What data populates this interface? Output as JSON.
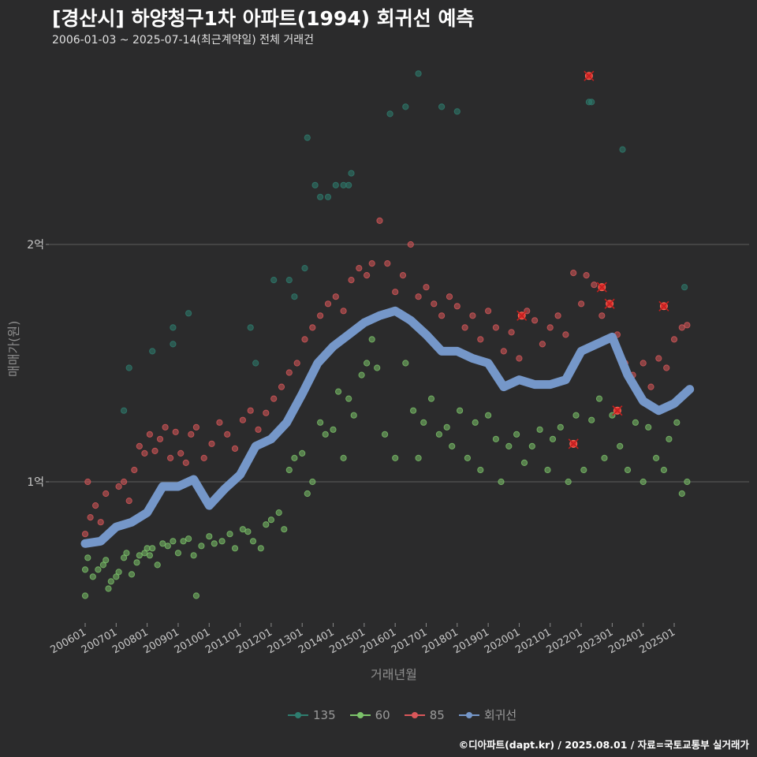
{
  "header": {
    "title": "[경산시] 하양청구1차 아파트(1994) 회귀선 예측",
    "subtitle": "2006-01-03 ~ 2025-07-14(최근계약일) 전체 거래건"
  },
  "footer": {
    "credit": "©디아파트(dapt.kr) / 2025.08.01 / 자료=국토교통부 실거래가"
  },
  "chart_data": {
    "type": "scatter",
    "title": "[경산시] 하양청구1차 아파트(1994) 회귀선 예측",
    "xlabel": "거래년월",
    "ylabel": "매매가(원)",
    "x_type": "date",
    "xlim": [
      "2006-01",
      "2025-12"
    ],
    "ylim": [
      5800,
      27500
    ],
    "y_ticks": [
      {
        "value": 10000,
        "label": "1억"
      },
      {
        "value": 20000,
        "label": "2억"
      }
    ],
    "x_ticks": [
      "200601",
      "200701",
      "200801",
      "200901",
      "201001",
      "201101",
      "201201",
      "201301",
      "201401",
      "201501",
      "201601",
      "201701",
      "201801",
      "201901",
      "202001",
      "202101",
      "202201",
      "202301",
      "202401",
      "202501"
    ],
    "grid": true,
    "legend_position": "bottom",
    "colors": {
      "135": "#2e7d6f",
      "60": "#7cc36a",
      "85": "#d9575a",
      "회귀선": "#7597c9"
    },
    "series": [
      {
        "name": "135",
        "type": "scatter",
        "points": [
          [
            "2007-04",
            13000
          ],
          [
            "2007-06",
            14800
          ],
          [
            "2008-03",
            15500
          ],
          [
            "2008-11",
            16500
          ],
          [
            "2008-11",
            15800
          ],
          [
            "2009-05",
            17100
          ],
          [
            "2011-05",
            16500
          ],
          [
            "2011-07",
            15000
          ],
          [
            "2012-02",
            18500
          ],
          [
            "2012-08",
            18500
          ],
          [
            "2012-10",
            17800
          ],
          [
            "2013-02",
            19000
          ],
          [
            "2013-03",
            24500
          ],
          [
            "2013-06",
            22500
          ],
          [
            "2013-08",
            22000
          ],
          [
            "2013-11",
            22000
          ],
          [
            "2014-02",
            22500
          ],
          [
            "2014-05",
            22500
          ],
          [
            "2014-07",
            22500
          ],
          [
            "2014-08",
            23000
          ],
          [
            "2015-11",
            25500
          ],
          [
            "2016-05",
            25800
          ],
          [
            "2016-10",
            27200
          ],
          [
            "2017-07",
            25800
          ],
          [
            "2018-01",
            25600
          ],
          [
            "2022-04",
            26000
          ],
          [
            "2022-05",
            26000
          ],
          [
            "2023-05",
            24000
          ],
          [
            "2025-05",
            18200
          ]
        ]
      },
      {
        "name": "60",
        "type": "scatter",
        "points": [
          [
            "2006-01",
            5200
          ],
          [
            "2006-01",
            6300
          ],
          [
            "2006-02",
            6800
          ],
          [
            "2006-04",
            6000
          ],
          [
            "2006-06",
            6300
          ],
          [
            "2006-08",
            6500
          ],
          [
            "2006-09",
            6700
          ],
          [
            "2006-10",
            5500
          ],
          [
            "2006-11",
            5800
          ],
          [
            "2007-01",
            6000
          ],
          [
            "2007-02",
            6200
          ],
          [
            "2007-04",
            6800
          ],
          [
            "2007-05",
            7000
          ],
          [
            "2007-07",
            6100
          ],
          [
            "2007-09",
            6600
          ],
          [
            "2007-10",
            6900
          ],
          [
            "2007-12",
            7000
          ],
          [
            "2008-01",
            7200
          ],
          [
            "2008-02",
            6900
          ],
          [
            "2008-03",
            7200
          ],
          [
            "2008-05",
            6500
          ],
          [
            "2008-07",
            7400
          ],
          [
            "2008-09",
            7300
          ],
          [
            "2008-11",
            7500
          ],
          [
            "2009-01",
            7000
          ],
          [
            "2009-03",
            7500
          ],
          [
            "2009-05",
            7600
          ],
          [
            "2009-07",
            6900
          ],
          [
            "2009-08",
            5200
          ],
          [
            "2009-10",
            7300
          ],
          [
            "2010-01",
            7700
          ],
          [
            "2010-03",
            7400
          ],
          [
            "2010-06",
            7500
          ],
          [
            "2010-09",
            7800
          ],
          [
            "2010-11",
            7200
          ],
          [
            "2011-02",
            8000
          ],
          [
            "2011-04",
            7900
          ],
          [
            "2011-06",
            7500
          ],
          [
            "2011-09",
            7200
          ],
          [
            "2011-11",
            8200
          ],
          [
            "2012-01",
            8400
          ],
          [
            "2012-04",
            8700
          ],
          [
            "2012-06",
            8000
          ],
          [
            "2012-08",
            10500
          ],
          [
            "2012-10",
            11000
          ],
          [
            "2013-01",
            11200
          ],
          [
            "2013-03",
            9500
          ],
          [
            "2013-05",
            10000
          ],
          [
            "2013-08",
            12500
          ],
          [
            "2013-10",
            12000
          ],
          [
            "2014-01",
            12200
          ],
          [
            "2014-03",
            13800
          ],
          [
            "2014-05",
            11000
          ],
          [
            "2014-07",
            13500
          ],
          [
            "2014-09",
            12800
          ],
          [
            "2014-12",
            14500
          ],
          [
            "2015-02",
            15000
          ],
          [
            "2015-04",
            16000
          ],
          [
            "2015-06",
            14800
          ],
          [
            "2015-09",
            12000
          ],
          [
            "2016-01",
            11000
          ],
          [
            "2016-05",
            15000
          ],
          [
            "2016-08",
            13000
          ],
          [
            "2016-10",
            11000
          ],
          [
            "2016-12",
            12500
          ],
          [
            "2017-03",
            13500
          ],
          [
            "2017-06",
            12000
          ],
          [
            "2017-09",
            12300
          ],
          [
            "2017-11",
            11500
          ],
          [
            "2018-02",
            13000
          ],
          [
            "2018-05",
            11000
          ],
          [
            "2018-08",
            12500
          ],
          [
            "2018-10",
            10500
          ],
          [
            "2019-01",
            12800
          ],
          [
            "2019-04",
            11800
          ],
          [
            "2019-06",
            10000
          ],
          [
            "2019-09",
            11500
          ],
          [
            "2019-12",
            12000
          ],
          [
            "2020-03",
            10800
          ],
          [
            "2020-06",
            11500
          ],
          [
            "2020-09",
            12200
          ],
          [
            "2020-12",
            10500
          ],
          [
            "2021-02",
            11800
          ],
          [
            "2021-05",
            12300
          ],
          [
            "2021-08",
            10000
          ],
          [
            "2021-11",
            12800
          ],
          [
            "2022-02",
            10500
          ],
          [
            "2022-05",
            12600
          ],
          [
            "2022-08",
            13500
          ],
          [
            "2022-10",
            11000
          ],
          [
            "2023-01",
            12800
          ],
          [
            "2023-04",
            11500
          ],
          [
            "2023-07",
            10500
          ],
          [
            "2023-10",
            12500
          ],
          [
            "2024-01",
            10000
          ],
          [
            "2024-03",
            12300
          ],
          [
            "2024-06",
            11000
          ],
          [
            "2024-09",
            10500
          ],
          [
            "2024-11",
            11800
          ],
          [
            "2025-02",
            12500
          ],
          [
            "2025-04",
            9500
          ],
          [
            "2025-06",
            10000
          ]
        ]
      },
      {
        "name": "85",
        "type": "scatter",
        "points": [
          [
            "2006-01",
            7800
          ],
          [
            "2006-02",
            10000
          ],
          [
            "2006-03",
            8500
          ],
          [
            "2006-05",
            9000
          ],
          [
            "2006-07",
            8300
          ],
          [
            "2006-09",
            9500
          ],
          [
            "2006-12",
            8000
          ],
          [
            "2007-02",
            9800
          ],
          [
            "2007-04",
            10000
          ],
          [
            "2007-06",
            9200
          ],
          [
            "2007-08",
            10500
          ],
          [
            "2007-10",
            11500
          ],
          [
            "2007-12",
            11200
          ],
          [
            "2008-02",
            12000
          ],
          [
            "2008-04",
            11300
          ],
          [
            "2008-06",
            11800
          ],
          [
            "2008-08",
            12300
          ],
          [
            "2008-10",
            11000
          ],
          [
            "2008-12",
            12100
          ],
          [
            "2009-02",
            11200
          ],
          [
            "2009-04",
            10800
          ],
          [
            "2009-06",
            12000
          ],
          [
            "2009-08",
            12300
          ],
          [
            "2009-11",
            11000
          ],
          [
            "2010-02",
            11600
          ],
          [
            "2010-05",
            12500
          ],
          [
            "2010-08",
            12000
          ],
          [
            "2010-11",
            11400
          ],
          [
            "2011-02",
            12600
          ],
          [
            "2011-05",
            13000
          ],
          [
            "2011-08",
            12200
          ],
          [
            "2011-11",
            12900
          ],
          [
            "2012-02",
            13500
          ],
          [
            "2012-05",
            14000
          ],
          [
            "2012-08",
            14600
          ],
          [
            "2012-11",
            15000
          ],
          [
            "2013-02",
            16000
          ],
          [
            "2013-05",
            16500
          ],
          [
            "2013-08",
            17000
          ],
          [
            "2013-11",
            17500
          ],
          [
            "2014-02",
            17800
          ],
          [
            "2014-05",
            17200
          ],
          [
            "2014-08",
            18500
          ],
          [
            "2014-11",
            19000
          ],
          [
            "2015-02",
            18700
          ],
          [
            "2015-04",
            19200
          ],
          [
            "2015-07",
            21000
          ],
          [
            "2015-10",
            19200
          ],
          [
            "2016-01",
            18000
          ],
          [
            "2016-04",
            18700
          ],
          [
            "2016-07",
            20000
          ],
          [
            "2016-10",
            17800
          ],
          [
            "2017-01",
            18200
          ],
          [
            "2017-04",
            17500
          ],
          [
            "2017-07",
            17000
          ],
          [
            "2017-10",
            17800
          ],
          [
            "2018-01",
            17400
          ],
          [
            "2018-04",
            16500
          ],
          [
            "2018-07",
            17000
          ],
          [
            "2018-10",
            16000
          ],
          [
            "2019-01",
            17200
          ],
          [
            "2019-04",
            16500
          ],
          [
            "2019-07",
            15500
          ],
          [
            "2019-10",
            16300
          ],
          [
            "2020-01",
            15200
          ],
          [
            "2020-04",
            17200
          ],
          [
            "2020-07",
            16800
          ],
          [
            "2020-10",
            15800
          ],
          [
            "2021-01",
            16500
          ],
          [
            "2021-04",
            17000
          ],
          [
            "2021-07",
            16200
          ],
          [
            "2021-10",
            18800
          ],
          [
            "2022-01",
            17500
          ],
          [
            "2022-03",
            18700
          ],
          [
            "2022-06",
            18300
          ],
          [
            "2022-09",
            17000
          ],
          [
            "2022-12",
            17500
          ],
          [
            "2023-03",
            16200
          ],
          [
            "2023-06",
            15000
          ],
          [
            "2023-09",
            14500
          ],
          [
            "2024-01",
            15000
          ],
          [
            "2024-04",
            14000
          ],
          [
            "2024-07",
            15200
          ],
          [
            "2024-10",
            14800
          ],
          [
            "2025-01",
            16000
          ],
          [
            "2025-04",
            16500
          ],
          [
            "2025-06",
            16600
          ]
        ]
      },
      {
        "name": "회귀선",
        "type": "line",
        "points": [
          [
            "2006-01",
            7400
          ],
          [
            "2006-07",
            7500
          ],
          [
            "2007-01",
            8100
          ],
          [
            "2007-07",
            8300
          ],
          [
            "2008-01",
            8700
          ],
          [
            "2008-07",
            9800
          ],
          [
            "2009-01",
            9800
          ],
          [
            "2009-07",
            10100
          ],
          [
            "2010-01",
            9000
          ],
          [
            "2010-07",
            9700
          ],
          [
            "2011-01",
            10300
          ],
          [
            "2011-07",
            11500
          ],
          [
            "2012-01",
            11800
          ],
          [
            "2012-07",
            12500
          ],
          [
            "2013-01",
            13700
          ],
          [
            "2013-07",
            15000
          ],
          [
            "2014-01",
            15700
          ],
          [
            "2014-07",
            16200
          ],
          [
            "2015-01",
            16700
          ],
          [
            "2015-07",
            17000
          ],
          [
            "2016-01",
            17200
          ],
          [
            "2016-07",
            16800
          ],
          [
            "2017-01",
            16200
          ],
          [
            "2017-07",
            15500
          ],
          [
            "2018-01",
            15500
          ],
          [
            "2018-07",
            15200
          ],
          [
            "2019-01",
            15000
          ],
          [
            "2019-07",
            14000
          ],
          [
            "2020-01",
            14300
          ],
          [
            "2020-07",
            14100
          ],
          [
            "2021-01",
            14100
          ],
          [
            "2021-07",
            14300
          ],
          [
            "2022-01",
            15500
          ],
          [
            "2022-07",
            15800
          ],
          [
            "2023-01",
            16100
          ],
          [
            "2023-07",
            14500
          ],
          [
            "2024-01",
            13400
          ],
          [
            "2024-07",
            13000
          ],
          [
            "2025-01",
            13300
          ],
          [
            "2025-07",
            13900
          ]
        ]
      }
    ],
    "highlighted_points": [
      [
        "2020-02",
        17000
      ],
      [
        "2021-10",
        11600
      ],
      [
        "2022-04",
        27100
      ],
      [
        "2022-09",
        18200
      ],
      [
        "2022-12",
        17500
      ],
      [
        "2023-03",
        13000
      ],
      [
        "2024-09",
        17400
      ]
    ]
  },
  "legend": {
    "items": [
      {
        "label": "135",
        "color": "#2e7d6f"
      },
      {
        "label": "60",
        "color": "#7cc36a"
      },
      {
        "label": "85",
        "color": "#d9575a"
      },
      {
        "label": "회귀선",
        "color": "#7597c9"
      }
    ]
  }
}
